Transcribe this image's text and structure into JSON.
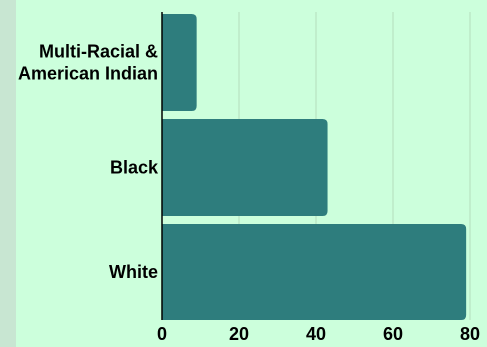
{
  "chart_data": {
    "type": "bar",
    "orientation": "horizontal",
    "categories": [
      [
        "Multi-Racial &",
        "American Indian"
      ],
      [
        "Black"
      ],
      [
        "White"
      ]
    ],
    "values": [
      9,
      43,
      79
    ],
    "xlim": [
      0,
      80
    ],
    "xticks": [
      "0",
      "20",
      "40",
      "60",
      "80"
    ],
    "grid": true,
    "colors": {
      "bar": "#2e7d7d",
      "grid": "#b4ddbd",
      "axis": "#000000",
      "plot_background": "#ccffdc",
      "page_background": "#c8e6d2"
    }
  }
}
